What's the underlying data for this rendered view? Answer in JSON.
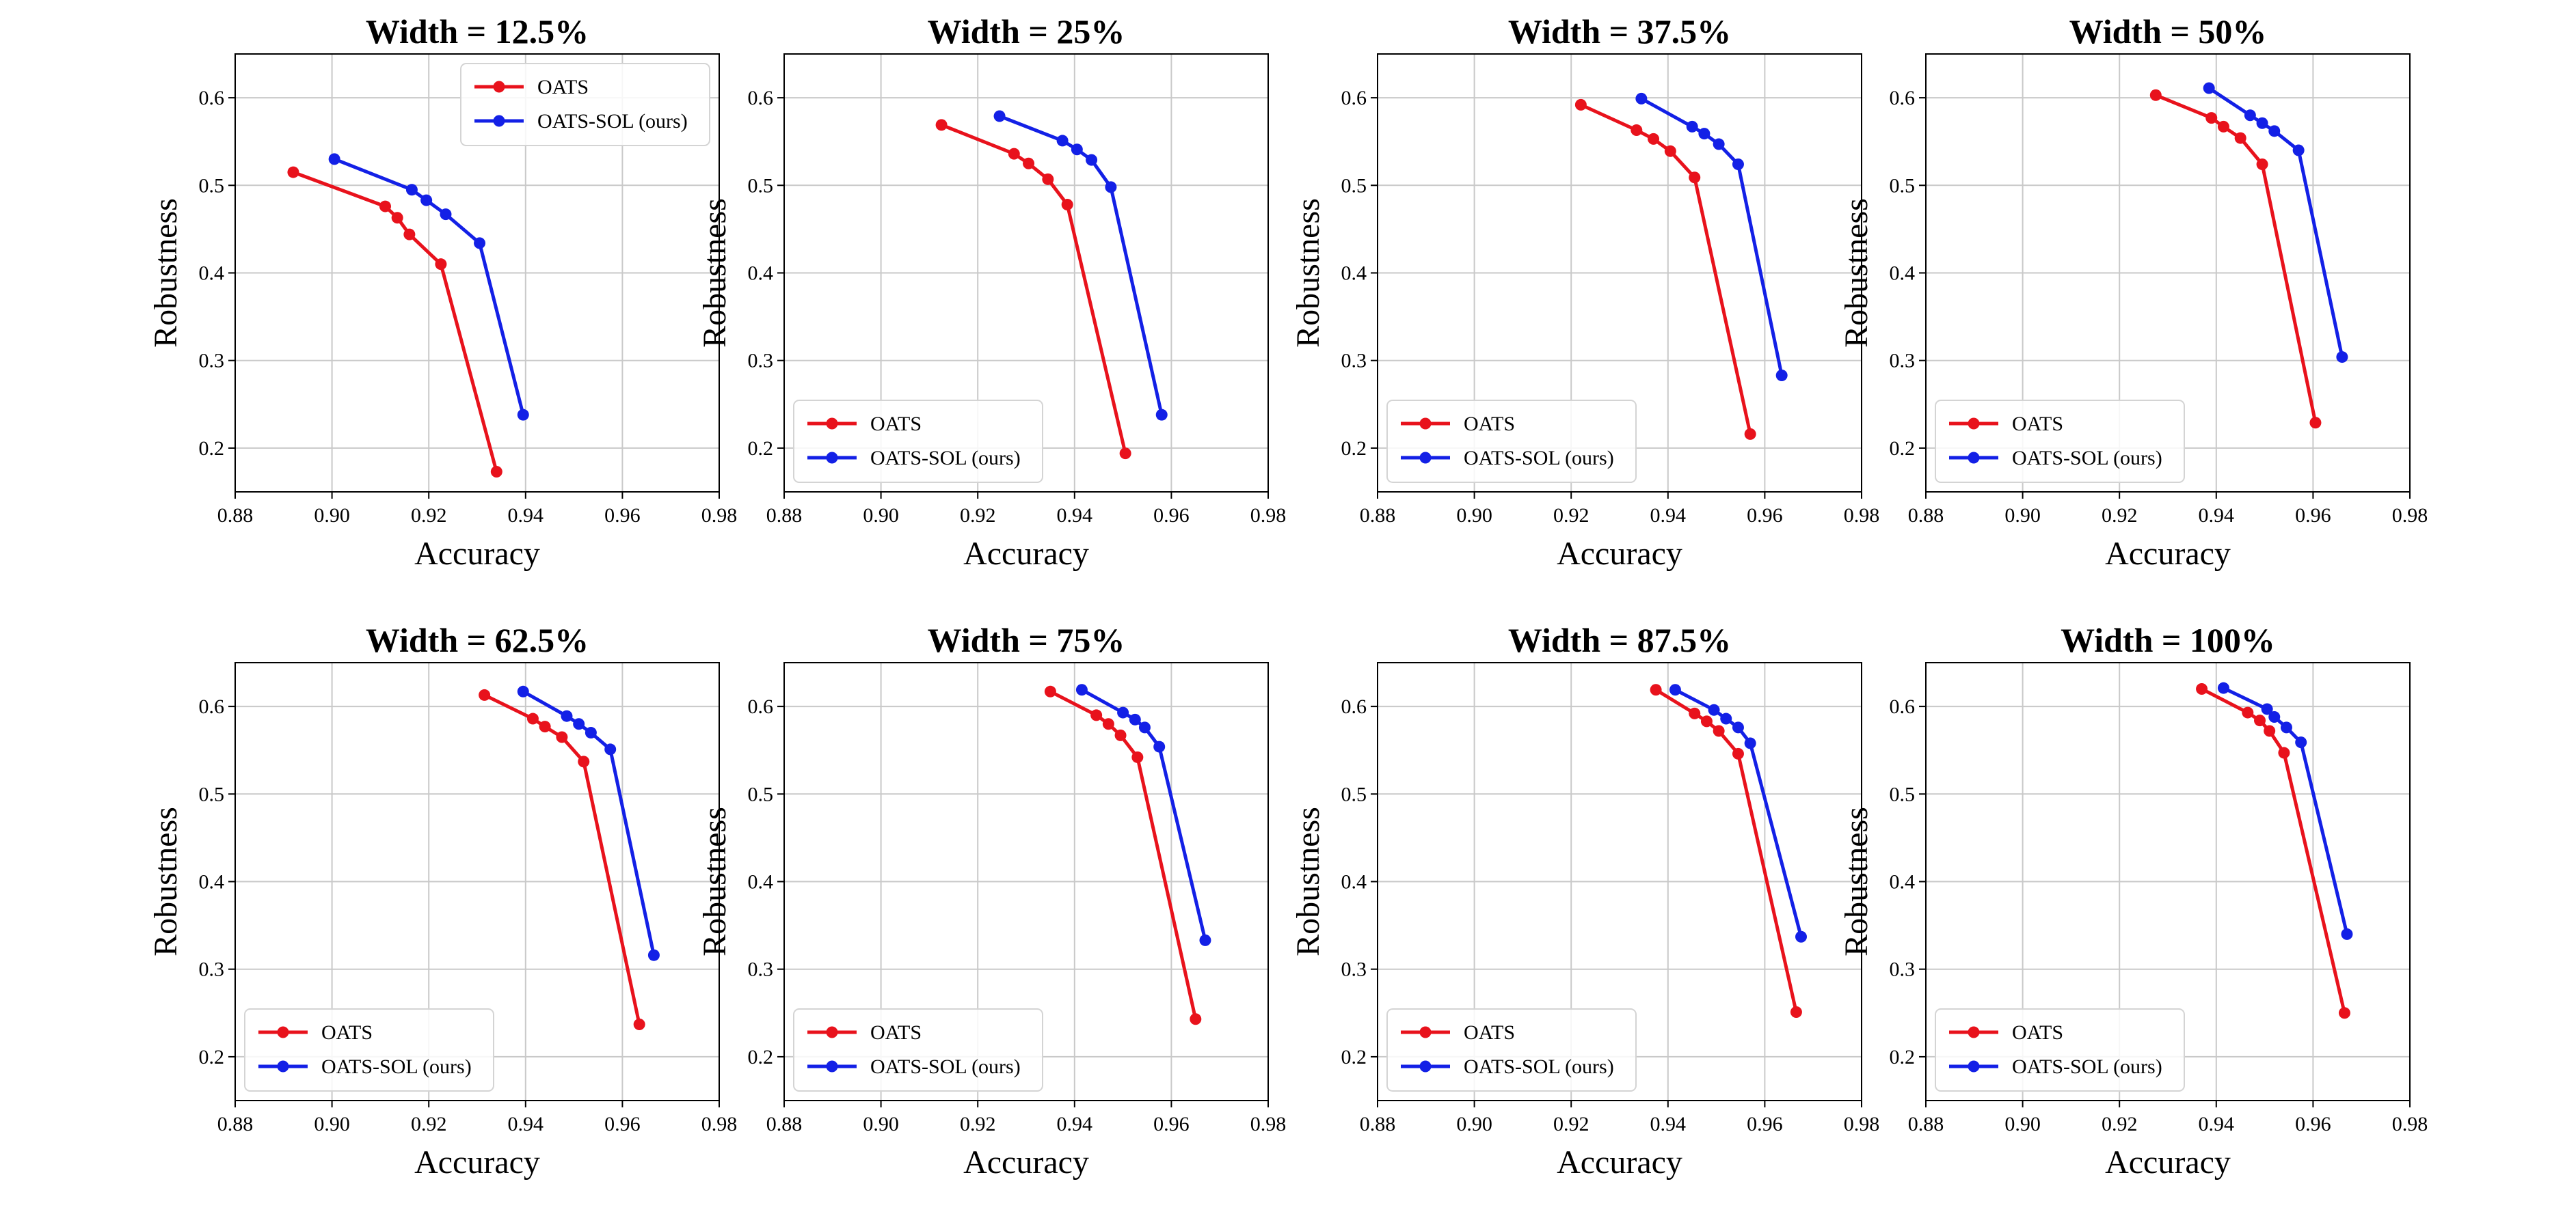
{
  "figure": {
    "columns": 4,
    "legend_labels": [
      "OATS",
      "OATS-SOL (ours)"
    ]
  },
  "colors": {
    "OATS": "#e8121c",
    "OATS-SOL (ours)": "#1320e6",
    "grid": "#c9c9c9",
    "frame": "#000000"
  },
  "chart_data": [
    {
      "type": "line",
      "title": "Width = 12.5%",
      "xlabel": "Accuracy",
      "ylabel": "Robustness",
      "xlim": [
        0.88,
        0.98
      ],
      "ylim": [
        0.15,
        0.65
      ],
      "xticks": [
        "0.88",
        "0.90",
        "0.92",
        "0.94",
        "0.96",
        "0.98"
      ],
      "yticks": [
        "0.2",
        "0.3",
        "0.4",
        "0.5",
        "0.6"
      ],
      "grid": true,
      "legend_position": "upper-right",
      "series": [
        {
          "name": "OATS",
          "x": [
            0.892,
            0.911,
            0.9135,
            0.916,
            0.9225,
            0.934
          ],
          "y": [
            0.515,
            0.476,
            0.463,
            0.444,
            0.41,
            0.173
          ]
        },
        {
          "name": "OATS-SOL (ours)",
          "x": [
            0.9005,
            0.9165,
            0.9195,
            0.9235,
            0.9305,
            0.9395
          ],
          "y": [
            0.53,
            0.495,
            0.483,
            0.467,
            0.434,
            0.238
          ]
        }
      ]
    },
    {
      "type": "line",
      "title": "Width = 25%",
      "xlabel": "Accuracy",
      "ylabel": "Robustness",
      "xlim": [
        0.88,
        0.98
      ],
      "ylim": [
        0.15,
        0.65
      ],
      "xticks": [
        "0.88",
        "0.90",
        "0.92",
        "0.94",
        "0.96",
        "0.98"
      ],
      "yticks": [
        "0.2",
        "0.3",
        "0.4",
        "0.5",
        "0.6"
      ],
      "grid": true,
      "legend_position": "lower-left",
      "series": [
        {
          "name": "OATS",
          "x": [
            0.9125,
            0.9275,
            0.9305,
            0.9345,
            0.9385,
            0.9505
          ],
          "y": [
            0.569,
            0.536,
            0.525,
            0.507,
            0.478,
            0.194
          ]
        },
        {
          "name": "OATS-SOL (ours)",
          "x": [
            0.9245,
            0.9375,
            0.9405,
            0.9435,
            0.9475,
            0.958
          ],
          "y": [
            0.579,
            0.551,
            0.541,
            0.529,
            0.498,
            0.238
          ]
        }
      ]
    },
    {
      "type": "line",
      "title": "Width = 37.5%",
      "xlabel": "Accuracy",
      "ylabel": "Robustness",
      "xlim": [
        0.88,
        0.98
      ],
      "ylim": [
        0.15,
        0.65
      ],
      "xticks": [
        "0.88",
        "0.90",
        "0.92",
        "0.94",
        "0.96",
        "0.98"
      ],
      "yticks": [
        "0.2",
        "0.3",
        "0.4",
        "0.5",
        "0.6"
      ],
      "grid": true,
      "legend_position": "lower-left",
      "series": [
        {
          "name": "OATS",
          "x": [
            0.922,
            0.9335,
            0.937,
            0.9405,
            0.9455,
            0.957
          ],
          "y": [
            0.592,
            0.563,
            0.553,
            0.539,
            0.509,
            0.216
          ]
        },
        {
          "name": "OATS-SOL (ours)",
          "x": [
            0.9345,
            0.945,
            0.9475,
            0.9505,
            0.9545,
            0.9635
          ],
          "y": [
            0.599,
            0.567,
            0.559,
            0.547,
            0.524,
            0.283
          ]
        }
      ]
    },
    {
      "type": "line",
      "title": "Width = 50%",
      "xlabel": "Accuracy",
      "ylabel": "Robustness",
      "xlim": [
        0.88,
        0.98
      ],
      "ylim": [
        0.15,
        0.65
      ],
      "xticks": [
        "0.88",
        "0.90",
        "0.92",
        "0.94",
        "0.96",
        "0.98"
      ],
      "yticks": [
        "0.2",
        "0.3",
        "0.4",
        "0.5",
        "0.6"
      ],
      "grid": true,
      "legend_position": "lower-left",
      "series": [
        {
          "name": "OATS",
          "x": [
            0.9275,
            0.939,
            0.9415,
            0.945,
            0.9495,
            0.9605
          ],
          "y": [
            0.603,
            0.577,
            0.567,
            0.554,
            0.524,
            0.229
          ]
        },
        {
          "name": "OATS-SOL (ours)",
          "x": [
            0.9385,
            0.947,
            0.9495,
            0.952,
            0.957,
            0.966
          ],
          "y": [
            0.611,
            0.58,
            0.571,
            0.562,
            0.54,
            0.304
          ]
        }
      ]
    },
    {
      "type": "line",
      "title": "Width = 62.5%",
      "xlabel": "Accuracy",
      "ylabel": "Robustness",
      "xlim": [
        0.88,
        0.98
      ],
      "ylim": [
        0.15,
        0.65
      ],
      "xticks": [
        "0.88",
        "0.90",
        "0.92",
        "0.94",
        "0.96",
        "0.98"
      ],
      "yticks": [
        "0.2",
        "0.3",
        "0.4",
        "0.5",
        "0.6"
      ],
      "grid": true,
      "legend_position": "lower-left",
      "series": [
        {
          "name": "OATS",
          "x": [
            0.9315,
            0.9415,
            0.944,
            0.9475,
            0.952,
            0.9635
          ],
          "y": [
            0.613,
            0.586,
            0.577,
            0.565,
            0.537,
            0.237
          ]
        },
        {
          "name": "OATS-SOL (ours)",
          "x": [
            0.9395,
            0.9485,
            0.951,
            0.9535,
            0.9575,
            0.9665
          ],
          "y": [
            0.617,
            0.589,
            0.58,
            0.57,
            0.551,
            0.316
          ]
        }
      ]
    },
    {
      "type": "line",
      "title": "Width = 75%",
      "xlabel": "Accuracy",
      "ylabel": "Robustness",
      "xlim": [
        0.88,
        0.98
      ],
      "ylim": [
        0.15,
        0.65
      ],
      "xticks": [
        "0.88",
        "0.90",
        "0.92",
        "0.94",
        "0.96",
        "0.98"
      ],
      "yticks": [
        "0.2",
        "0.3",
        "0.4",
        "0.5",
        "0.6"
      ],
      "grid": true,
      "legend_position": "lower-left",
      "series": [
        {
          "name": "OATS",
          "x": [
            0.935,
            0.9445,
            0.947,
            0.9495,
            0.953,
            0.965
          ],
          "y": [
            0.617,
            0.59,
            0.58,
            0.567,
            0.542,
            0.243
          ]
        },
        {
          "name": "OATS-SOL (ours)",
          "x": [
            0.9415,
            0.95,
            0.9525,
            0.9545,
            0.9575,
            0.967
          ],
          "y": [
            0.619,
            0.593,
            0.585,
            0.576,
            0.554,
            0.333
          ]
        }
      ]
    },
    {
      "type": "line",
      "title": "Width = 87.5%",
      "xlabel": "Accuracy",
      "ylabel": "Robustness",
      "xlim": [
        0.88,
        0.98
      ],
      "ylim": [
        0.15,
        0.65
      ],
      "xticks": [
        "0.88",
        "0.90",
        "0.92",
        "0.94",
        "0.96",
        "0.98"
      ],
      "yticks": [
        "0.2",
        "0.3",
        "0.4",
        "0.5",
        "0.6"
      ],
      "grid": true,
      "legend_position": "lower-left",
      "series": [
        {
          "name": "OATS",
          "x": [
            0.9375,
            0.9455,
            0.948,
            0.9505,
            0.9545,
            0.9665
          ],
          "y": [
            0.619,
            0.592,
            0.583,
            0.572,
            0.546,
            0.251
          ]
        },
        {
          "name": "OATS-SOL (ours)",
          "x": [
            0.9415,
            0.9495,
            0.952,
            0.9545,
            0.957,
            0.9675
          ],
          "y": [
            0.619,
            0.596,
            0.586,
            0.576,
            0.558,
            0.337
          ]
        }
      ]
    },
    {
      "type": "line",
      "title": "Width = 100%",
      "xlabel": "Accuracy",
      "ylabel": "Robustness",
      "xlim": [
        0.88,
        0.98
      ],
      "ylim": [
        0.15,
        0.65
      ],
      "xticks": [
        "0.88",
        "0.90",
        "0.92",
        "0.94",
        "0.96",
        "0.98"
      ],
      "yticks": [
        "0.2",
        "0.3",
        "0.4",
        "0.5",
        "0.6"
      ],
      "grid": true,
      "legend_position": "lower-left",
      "series": [
        {
          "name": "OATS",
          "x": [
            0.937,
            0.9465,
            0.949,
            0.951,
            0.954,
            0.9665
          ],
          "y": [
            0.62,
            0.593,
            0.584,
            0.572,
            0.547,
            0.25
          ]
        },
        {
          "name": "OATS-SOL (ours)",
          "x": [
            0.9415,
            0.9505,
            0.952,
            0.9545,
            0.9575,
            0.967
          ],
          "y": [
            0.621,
            0.597,
            0.588,
            0.576,
            0.559,
            0.34
          ]
        }
      ]
    }
  ]
}
